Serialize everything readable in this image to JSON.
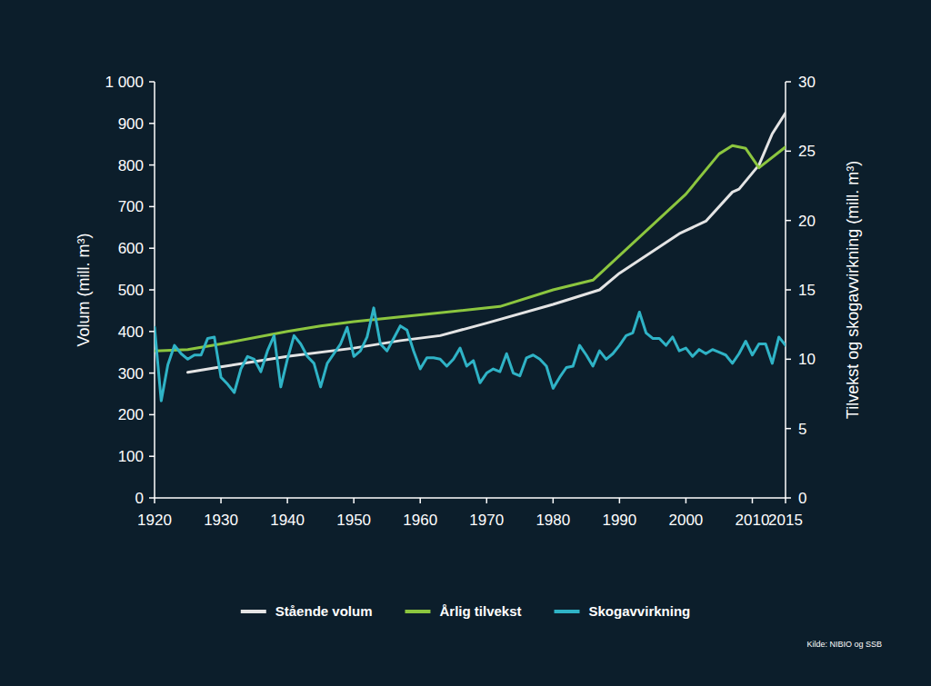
{
  "chart_data": {
    "type": "line",
    "y_label": "Volum (mill. m³)",
    "y2_label": "Tilvekst og skogavvirkning (mill. m³)",
    "source": "Kilde: NIBIO og SSB",
    "legend": "bottom",
    "xlim": [
      1920,
      2015
    ],
    "xticks": [
      1920,
      1930,
      1940,
      1950,
      1960,
      1970,
      1980,
      1990,
      2000,
      2010,
      2015
    ],
    "ylim": [
      0,
      1000
    ],
    "yticks": [
      0,
      100,
      200,
      300,
      400,
      500,
      600,
      700,
      800,
      900,
      {
        "value": 1000,
        "label": "1 000"
      }
    ],
    "y2lim": [
      0,
      30
    ],
    "y2ticks": [
      0,
      5,
      10,
      15,
      20,
      25,
      30
    ],
    "series": [
      {
        "name": "Stående volum",
        "color": "#e4e4e4",
        "axis": "y",
        "x": [
          1925,
          1930,
          1940,
          1950,
          1957,
          1963,
          1970,
          1980,
          1987,
          1990,
          1999,
          2003,
          2007,
          2008,
          2011,
          2013,
          2015
        ],
        "values": [
          302,
          315,
          340,
          360,
          378,
          390,
          420,
          465,
          500,
          540,
          635,
          665,
          735,
          742,
          800,
          875,
          925
        ]
      },
      {
        "name": "Årlig tilvekst",
        "color": "#8cc63f",
        "axis": "y2",
        "x": [
          1920,
          1925,
          1930,
          1940,
          1945,
          1950,
          1960,
          1972,
          1980,
          1986,
          2000,
          2005,
          2007,
          2009,
          2011,
          2015
        ],
        "values": [
          10.6,
          10.7,
          11.1,
          12.0,
          12.4,
          12.7,
          13.2,
          13.8,
          15.0,
          15.7,
          21.9,
          24.8,
          25.4,
          25.2,
          23.8,
          25.3
        ]
      },
      {
        "name": "Skogavvirkning",
        "color": "#2fb3c6",
        "axis": "y2",
        "x": [
          1920,
          1921,
          1922,
          1923,
          1924,
          1925,
          1926,
          1927,
          1928,
          1929,
          1930,
          1931,
          1932,
          1933,
          1934,
          1935,
          1936,
          1937,
          1938,
          1939,
          1940,
          1941,
          1942,
          1943,
          1944,
          1945,
          1946,
          1947,
          1948,
          1949,
          1950,
          1951,
          1952,
          1953,
          1954,
          1955,
          1956,
          1957,
          1958,
          1959,
          1960,
          1961,
          1962,
          1963,
          1964,
          1965,
          1966,
          1967,
          1968,
          1969,
          1970,
          1971,
          1972,
          1973,
          1974,
          1975,
          1976,
          1977,
          1978,
          1979,
          1980,
          1981,
          1982,
          1983,
          1984,
          1985,
          1986,
          1987,
          1988,
          1989,
          1990,
          1991,
          1992,
          1993,
          1994,
          1995,
          1996,
          1997,
          1998,
          1999,
          2000,
          2001,
          2002,
          2003,
          2004,
          2005,
          2006,
          2007,
          2008,
          2009,
          2010,
          2011,
          2012,
          2013,
          2014,
          2015
        ],
        "values": [
          12.3,
          7.0,
          9.6,
          11.0,
          10.4,
          10.0,
          10.3,
          10.3,
          11.5,
          11.6,
          8.7,
          8.2,
          7.6,
          9.3,
          10.2,
          10.0,
          9.1,
          10.6,
          11.7,
          8.0,
          10.0,
          11.7,
          11.1,
          10.2,
          9.7,
          8.0,
          9.7,
          10.4,
          11.1,
          12.3,
          10.2,
          10.6,
          11.6,
          13.7,
          11.1,
          10.6,
          11.5,
          12.4,
          12.1,
          10.6,
          9.3,
          10.1,
          10.1,
          10.0,
          9.5,
          10.0,
          10.8,
          9.5,
          9.9,
          8.3,
          9.0,
          9.3,
          9.1,
          10.4,
          9.0,
          8.8,
          10.1,
          10.3,
          10.0,
          9.5,
          7.9,
          8.7,
          9.4,
          9.5,
          11.0,
          10.3,
          9.5,
          10.6,
          10.0,
          10.4,
          11.0,
          11.7,
          11.9,
          13.4,
          11.9,
          11.5,
          11.5,
          11.0,
          11.6,
          10.6,
          10.8,
          10.2,
          10.7,
          10.4,
          10.7,
          10.5,
          10.3,
          9.7,
          10.4,
          11.3,
          10.3,
          11.1,
          11.1,
          9.7,
          11.6,
          11.0
        ]
      }
    ]
  }
}
